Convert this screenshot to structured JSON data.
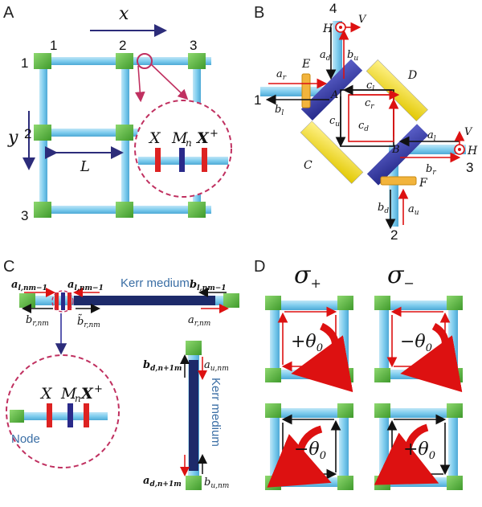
{
  "panels": {
    "a": "A",
    "b": "B",
    "c": "C",
    "d": "D"
  },
  "panel_a": {
    "x_axis": "x",
    "y_axis": "y",
    "L": "L",
    "col_labels": [
      "1",
      "2",
      "3"
    ],
    "row_labels": [
      "1",
      "2",
      "3"
    ],
    "inset": {
      "X": "X",
      "M": "M",
      "n": "n",
      "Xplus": "X",
      "plus": "+"
    }
  },
  "panel_b": {
    "port_4": "4",
    "port_1": "1",
    "port_2": "2",
    "port_3": "3",
    "H_top": "H",
    "V_top": "V",
    "H_right": "H",
    "V_right": "V",
    "a_d": "a",
    "a_d_sub": "d",
    "b_u": "b",
    "b_u_sub": "u",
    "a_r": "a",
    "a_r_sub": "r",
    "b_l": "b",
    "b_l_sub": "l",
    "E": "E",
    "D": "D",
    "C": "C",
    "F": "F",
    "A": "A",
    "B": "B",
    "c_l": "c",
    "c_l_sub": "l",
    "c_r": "c",
    "c_r_sub": "r",
    "c_u": "c",
    "c_u_sub": "u",
    "c_d": "c",
    "c_d_sub": "d",
    "a_l": "a",
    "a_l_sub": "l",
    "b_r": "b",
    "b_r_sub": "r",
    "b_d": "b",
    "b_d_sub": "d",
    "a_u": "a",
    "a_u_sub": "u"
  },
  "panel_c": {
    "a_l_left": "a",
    "a_l_left_sub": "l,nm−1",
    "a_l_mid": "a",
    "a_l_mid_sub": "l,nm−1",
    "kerr_top": "Kerr medium",
    "b_l_right": "b",
    "b_l_right_sub": "l,nm−1",
    "b_r": "b",
    "b_r_sub": "r,nm",
    "b_r_tilde": "b̃",
    "b_r_tilde_sub": "r,nm",
    "a_r": "a",
    "a_r_sub": "r,nm",
    "b_d": "b",
    "b_d_sub": "d,n+1m",
    "a_u": "a",
    "a_u_sub": "u,nm",
    "kerr_vert": "Kerr medium",
    "a_d": "a",
    "a_d_sub": "d,n+1m",
    "b_u": "b",
    "b_u_sub": "u,nm",
    "inset": {
      "X": "X",
      "M": "M",
      "n": "n",
      "Xplus": "X",
      "plus": "+"
    },
    "node": "Node"
  },
  "panel_d": {
    "sigma": "σ",
    "plus_sub": "+",
    "minus_sub": "−",
    "theta_tl": "+θ",
    "theta_tr": "−θ",
    "theta_bl": "−θ",
    "theta_br": "+θ",
    "theta_sub": "0"
  }
}
